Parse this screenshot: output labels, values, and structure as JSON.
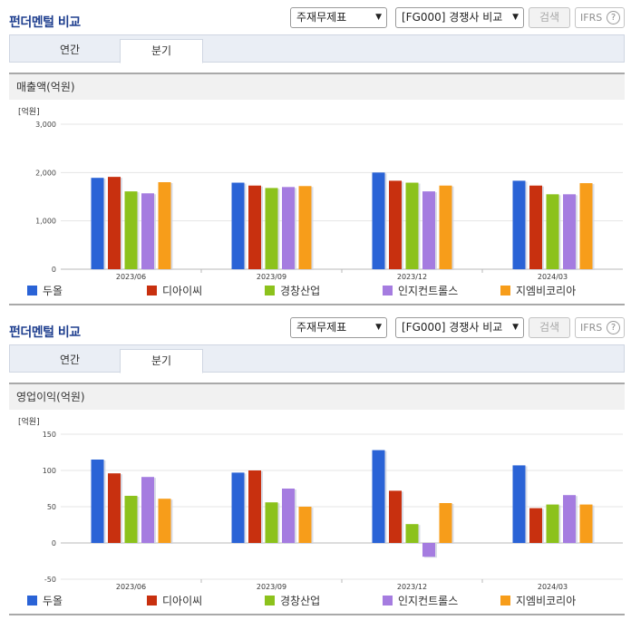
{
  "panels": [
    {
      "title": "펀더멘털 비교",
      "select_statement": "주재무제표",
      "select_compare": "[FG000] 경쟁사 비교",
      "search_label": "검색",
      "ifrs_label": "IFRS",
      "tabs": [
        "연간",
        "분기"
      ],
      "active_tab": "분기",
      "section_title": "매출액(억원)"
    },
    {
      "title": "펀더멘털 비교",
      "select_statement": "주재무제표",
      "select_compare": "[FG000] 경쟁사 비교",
      "search_label": "검색",
      "ifrs_label": "IFRS",
      "tabs": [
        "연간",
        "분기"
      ],
      "active_tab": "분기",
      "section_title": "영업이익(억원)"
    }
  ],
  "colors": {
    "두올": "#2a63d6",
    "디아이씨": "#c8300f",
    "경창산업": "#8cc21c",
    "인지컨트롤스": "#a57ce0",
    "지엠비코리아": "#f79d1a"
  },
  "chart_data": [
    {
      "type": "bar",
      "unit_label": "[억원]",
      "categories": [
        "2023/06",
        "2023/09",
        "2023/12",
        "2024/03"
      ],
      "ylim": [
        0,
        3000
      ],
      "yticks": [
        "0",
        "1,000",
        "2,000",
        "3,000"
      ],
      "ytick_values": [
        0,
        1000,
        2000,
        3000
      ],
      "grid": true,
      "legend": "bottom",
      "series": [
        {
          "name": "두올",
          "values": [
            1890,
            1790,
            2000,
            1830
          ]
        },
        {
          "name": "디아이씨",
          "values": [
            1910,
            1730,
            1830,
            1730
          ]
        },
        {
          "name": "경창산업",
          "values": [
            1610,
            1680,
            1790,
            1550
          ]
        },
        {
          "name": "인지컨트롤스",
          "values": [
            1570,
            1700,
            1610,
            1550
          ]
        },
        {
          "name": "지엠비코리아",
          "values": [
            1800,
            1720,
            1730,
            1780
          ]
        }
      ]
    },
    {
      "type": "bar",
      "unit_label": "[억원]",
      "categories": [
        "2023/06",
        "2023/09",
        "2023/12",
        "2024/03"
      ],
      "ylim": [
        -50,
        150
      ],
      "yticks": [
        "-50",
        "0",
        "50",
        "100",
        "150"
      ],
      "ytick_values": [
        -50,
        0,
        50,
        100,
        150
      ],
      "grid": true,
      "legend": "bottom",
      "series": [
        {
          "name": "두올",
          "values": [
            115,
            97,
            128,
            107
          ]
        },
        {
          "name": "디아이씨",
          "values": [
            96,
            100,
            72,
            48
          ]
        },
        {
          "name": "경창산업",
          "values": [
            65,
            56,
            26,
            53
          ]
        },
        {
          "name": "인지컨트롤스",
          "values": [
            91,
            75,
            -19,
            66
          ]
        },
        {
          "name": "지엠비코리아",
          "values": [
            61,
            50,
            55,
            53
          ]
        }
      ]
    }
  ]
}
